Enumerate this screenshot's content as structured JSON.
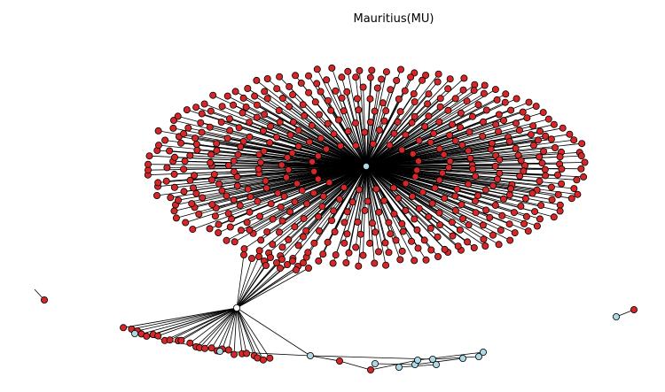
{
  "title": "Mauritius(MU)",
  "colors": {
    "red_node": "#d62728",
    "blue_node": "#add8e6",
    "edge": "#000000",
    "node_stroke": "#000000"
  }
}
